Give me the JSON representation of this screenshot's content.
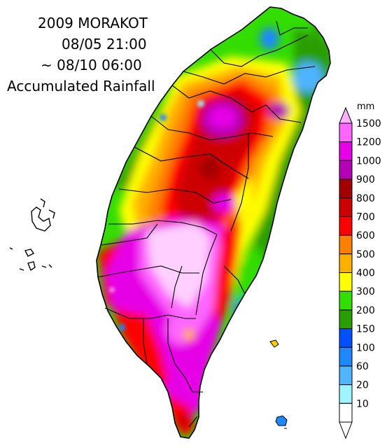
{
  "title": {
    "line1": "2009 MORAKOT",
    "line2": "08/05 21:00",
    "line3": "~ 08/10 06:00",
    "line4": "Accumulated Rainfall"
  },
  "legend": {
    "unit": "mm",
    "classes": [
      {
        "label": "1500",
        "color": "#ff66ff"
      },
      {
        "label": "1200",
        "color": "#e600e6"
      },
      {
        "label": "1000",
        "color": "#b400b4"
      },
      {
        "label": "900",
        "color": "#a00000"
      },
      {
        "label": "800",
        "color": "#cc0000"
      },
      {
        "label": "700",
        "color": "#ff0000"
      },
      {
        "label": "600",
        "color": "#ff7f00"
      },
      {
        "label": "500",
        "color": "#ffb000"
      },
      {
        "label": "400",
        "color": "#ffff00"
      },
      {
        "label": "300",
        "color": "#33dd00"
      },
      {
        "label": "200",
        "color": "#2a9e00"
      },
      {
        "label": "150",
        "color": "#0050ff"
      },
      {
        "label": "100",
        "color": "#1e88ff"
      },
      {
        "label": "60",
        "color": "#50b4ff"
      },
      {
        "label": "20",
        "color": "#9ef5ff"
      },
      {
        "label": "10",
        "color": "#ffffff"
      }
    ],
    "top_arrow_color": "#ffb0ff"
  }
}
